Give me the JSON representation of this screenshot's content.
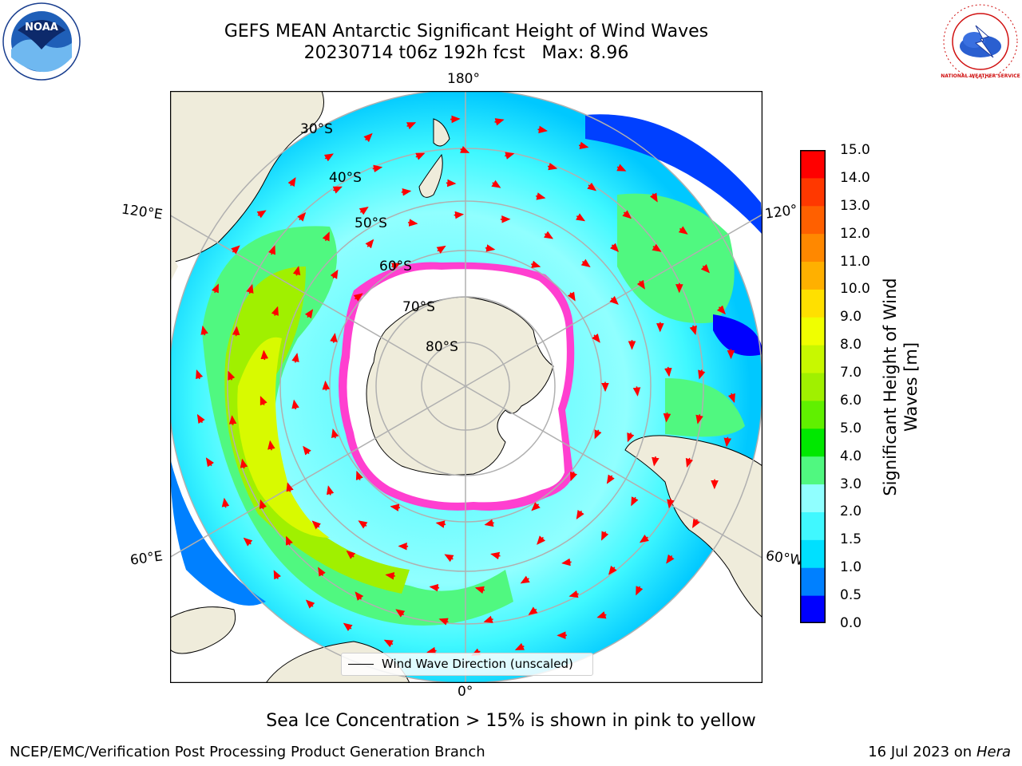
{
  "header": {
    "title_line1": "GEFS MEAN Antarctic Significant Height of Wind Waves",
    "title_line2": "20230714 t06z 192h fcst   Max: 8.96",
    "noaa_logo_text": "NOAA",
    "nws_logo_text": "NATIONAL WEATHER SERVICE"
  },
  "map": {
    "lon_labels": [
      "180°",
      "120°E",
      "120°",
      "60°E",
      "60°W",
      "0°"
    ],
    "lat_labels": [
      "30°S",
      "40°S",
      "50°S",
      "60°S",
      "70°S",
      "80°S"
    ],
    "legend_text": "Wind Wave Direction (unscaled)",
    "colors": {
      "land": "#efecdb",
      "ice_white": "#ffffff",
      "ice_edge": "#ff3fd0",
      "arrow": "#ff0000",
      "gridline": "#b0b0b0"
    }
  },
  "colorbar": {
    "label": "Significant Height of Wind\nWaves [m]",
    "ticks": [
      "15.0",
      "14.0",
      "13.0",
      "12.0",
      "11.0",
      "10.0",
      "9.0",
      "8.0",
      "7.0",
      "6.0",
      "5.0",
      "4.0",
      "3.0",
      "2.0",
      "1.5",
      "1.0",
      "0.5",
      "0.0"
    ],
    "colors": [
      "#0000ff",
      "#0080ff",
      "#00e0ff",
      "#40f8ff",
      "#90ffff",
      "#50f880",
      "#00e800",
      "#60f000",
      "#a0f000",
      "#c8f800",
      "#f0ff00",
      "#ffe000",
      "#ffb000",
      "#ff8800",
      "#ff6000",
      "#ff3800",
      "#ff0000"
    ]
  },
  "caption": "Sea Ice Concentration > 15% is shown in pink to yellow",
  "footer": {
    "left": "NCEP/EMC/Verification Post Processing Product Generation Branch",
    "right_date": "16 Jul 2023 on ",
    "right_machine": "Hera"
  }
}
